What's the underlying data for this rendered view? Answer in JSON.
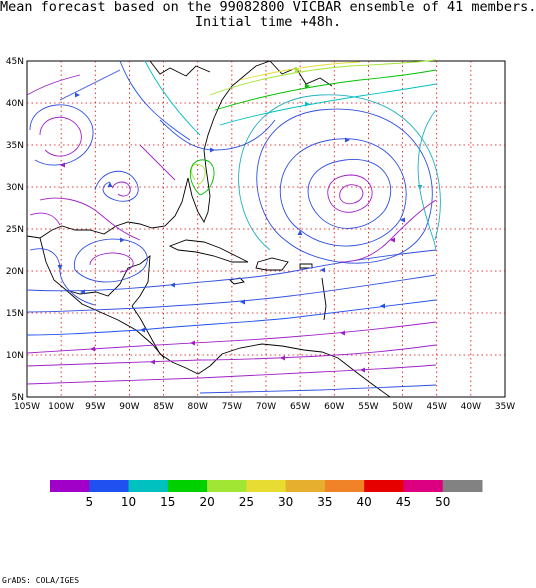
{
  "title_line1": "Mean forecast based on the 99082800 VICBAR ensemble of 41 members.",
  "title_line2": "Initial time +48h.",
  "lon_labels": [
    "105W",
    "100W",
    "95W",
    "90W",
    "85W",
    "80W",
    "75W",
    "70W",
    "65W",
    "60W",
    "55W",
    "50W",
    "45W",
    "40W",
    "35W"
  ],
  "lat_labels": [
    "45N",
    "40N",
    "35N",
    "30N",
    "25N",
    "20N",
    "15N",
    "10N",
    "5N"
  ],
  "colorbar": {
    "colors": [
      "#a000c8",
      "#2050f0",
      "#00c0c0",
      "#00d000",
      "#a0e632",
      "#e6dc32",
      "#e6af2d",
      "#f08228",
      "#e60000",
      "#dc0080",
      "#828282"
    ],
    "labels": [
      "5",
      "10",
      "15",
      "20",
      "25",
      "30",
      "35",
      "40",
      "45",
      "50"
    ]
  },
  "footer": "GrADS: COLA/IGES"
}
